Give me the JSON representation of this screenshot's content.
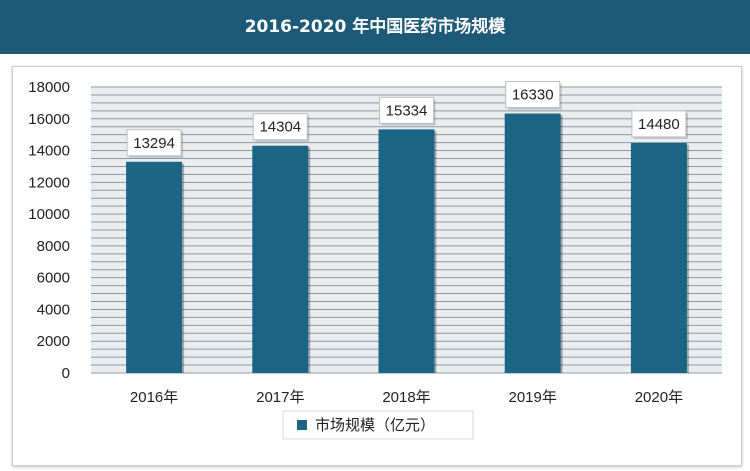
{
  "header": {
    "title": "2016-2020 年中国医药市场规模"
  },
  "colors": {
    "header_bg": "#1d5a78",
    "bar": "#1b6685",
    "grid": "#8a9aa6",
    "plot_bg": "#e9edf0"
  },
  "chart_data": {
    "type": "bar",
    "title": "2016-2020 年中国医药市场规模",
    "categories": [
      "2016年",
      "2017年",
      "2018年",
      "2019年",
      "2020年"
    ],
    "series": [
      {
        "name": "市场规模（亿元）",
        "values": [
          13294,
          14304,
          15334,
          16330,
          14480
        ]
      }
    ],
    "data_labels": [
      "13294",
      "14304",
      "15334",
      "16330",
      "14480"
    ],
    "yticks": [
      "0",
      "2000",
      "4000",
      "6000",
      "8000",
      "10000",
      "12000",
      "14000",
      "16000",
      "18000"
    ],
    "ylim": [
      0,
      18000
    ],
    "xlabel": "",
    "ylabel": "",
    "legend": "bottom",
    "grid": true
  }
}
